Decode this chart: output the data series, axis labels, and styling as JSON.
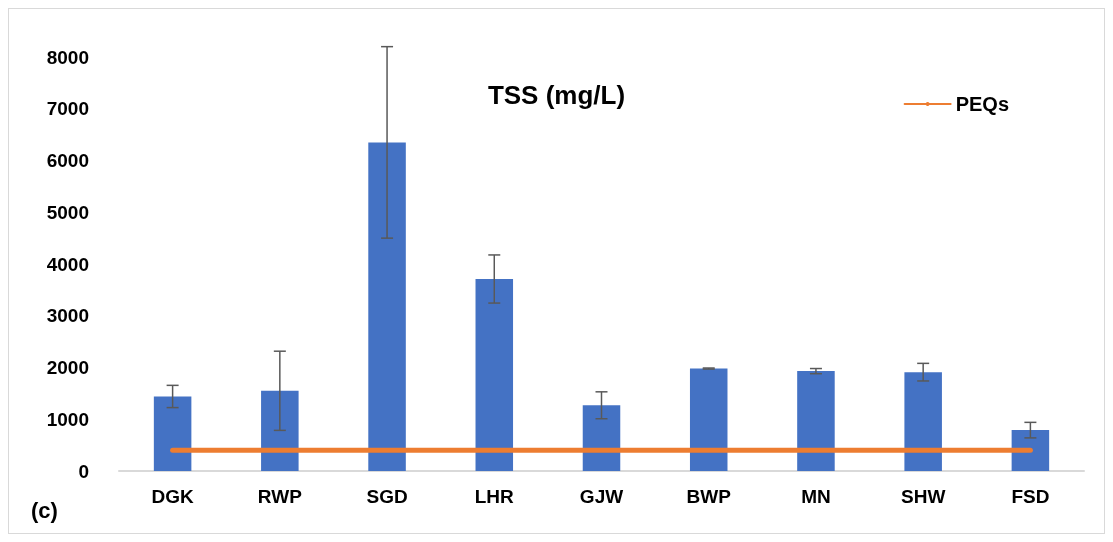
{
  "chart_data": {
    "type": "bar",
    "title": "TSS (mg/L)",
    "categories": [
      "DGK",
      "RWP",
      "SGD",
      "LHR",
      "GJW",
      "BWP",
      "MN",
      "SHW",
      "FSD"
    ],
    "series": [
      {
        "color": "#4472c4",
        "values": [
          1440,
          1550,
          6350,
          3710,
          1270,
          1980,
          1930,
          1910,
          790
        ],
        "errors": [
          215,
          765,
          1850,
          465,
          260,
          10,
          50,
          170,
          150
        ]
      },
      {
        "type": "line",
        "name": "PEQs",
        "color": "#ed7d31",
        "values": [
          400,
          400,
          400,
          400,
          400,
          400,
          400,
          400,
          400
        ]
      }
    ],
    "ylim": [
      0,
      8000
    ],
    "yticks": [
      0,
      1000,
      2000,
      3000,
      4000,
      5000,
      6000,
      7000,
      8000
    ],
    "grid": false,
    "legend": "top right",
    "annotations": [
      "(c)"
    ]
  }
}
